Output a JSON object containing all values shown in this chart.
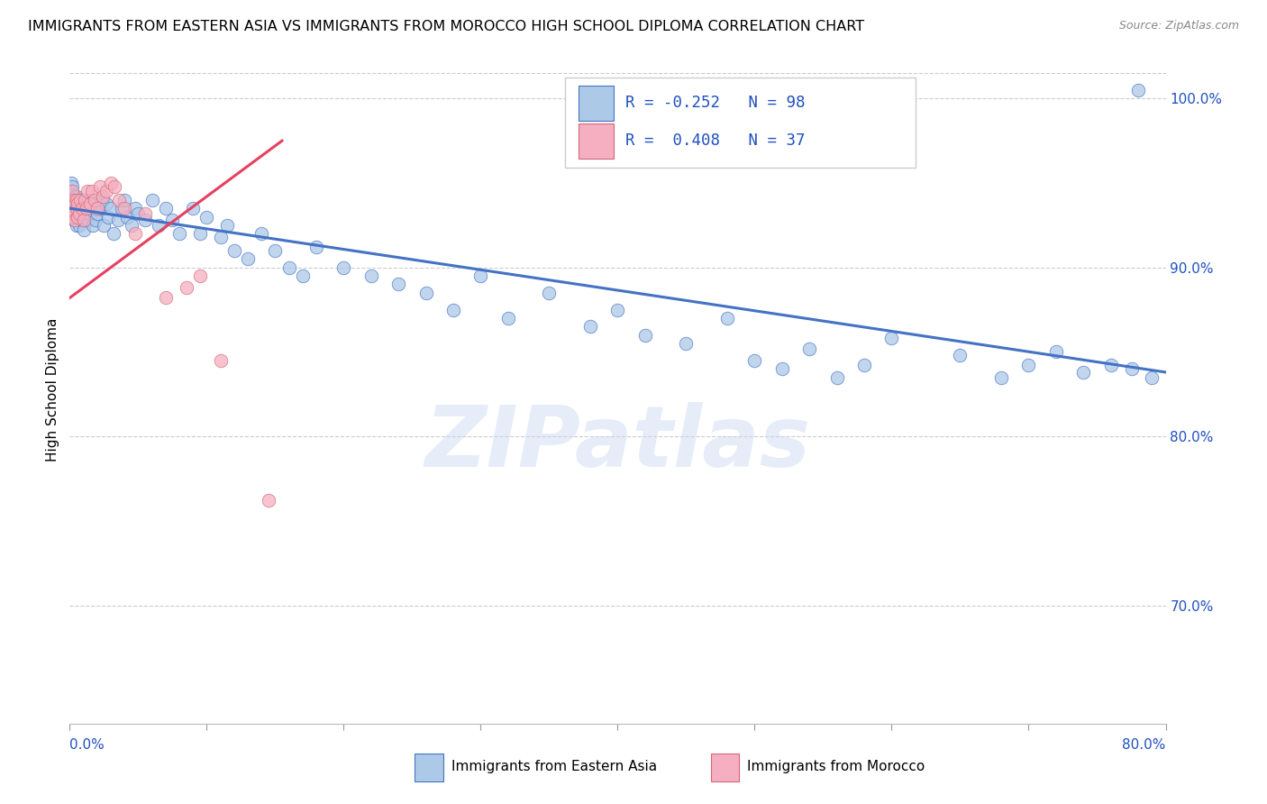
{
  "title": "IMMIGRANTS FROM EASTERN ASIA VS IMMIGRANTS FROM MOROCCO HIGH SCHOOL DIPLOMA CORRELATION CHART",
  "source": "Source: ZipAtlas.com",
  "ylabel": "High School Diploma",
  "xlim": [
    0.0,
    0.8
  ],
  "ylim": [
    0.63,
    1.025
  ],
  "r_eastern_asia": -0.252,
  "n_eastern_asia": 98,
  "r_morocco": 0.408,
  "n_morocco": 37,
  "color_eastern_asia": "#adc9e8",
  "color_morocco": "#f5afc0",
  "trendline_eastern_asia": "#4472c4",
  "trendline_morocco": "#e84060",
  "legend_text_color": "#2050c0",
  "watermark": "ZIPatlas",
  "ea_trendline_x0": 0.0,
  "ea_trendline_y0": 0.935,
  "ea_trendline_x1": 0.8,
  "ea_trendline_y1": 0.838,
  "mo_trendline_x0": 0.0,
  "mo_trendline_y0": 0.882,
  "mo_trendline_x1": 0.155,
  "mo_trendline_y1": 0.975,
  "eastern_asia_x": [
    0.001,
    0.001,
    0.002,
    0.002,
    0.002,
    0.003,
    0.003,
    0.003,
    0.003,
    0.004,
    0.004,
    0.004,
    0.004,
    0.005,
    0.005,
    0.005,
    0.006,
    0.006,
    0.006,
    0.007,
    0.007,
    0.007,
    0.008,
    0.008,
    0.009,
    0.009,
    0.01,
    0.01,
    0.011,
    0.012,
    0.013,
    0.014,
    0.015,
    0.016,
    0.017,
    0.018,
    0.019,
    0.02,
    0.022,
    0.024,
    0.025,
    0.027,
    0.028,
    0.03,
    0.032,
    0.035,
    0.038,
    0.04,
    0.042,
    0.045,
    0.048,
    0.05,
    0.055,
    0.06,
    0.065,
    0.07,
    0.075,
    0.08,
    0.09,
    0.095,
    0.1,
    0.11,
    0.115,
    0.12,
    0.13,
    0.14,
    0.15,
    0.16,
    0.17,
    0.18,
    0.2,
    0.22,
    0.24,
    0.26,
    0.28,
    0.3,
    0.32,
    0.35,
    0.38,
    0.4,
    0.42,
    0.45,
    0.48,
    0.5,
    0.52,
    0.54,
    0.56,
    0.58,
    0.6,
    0.65,
    0.68,
    0.7,
    0.72,
    0.74,
    0.76,
    0.775,
    0.78,
    0.79
  ],
  "eastern_asia_y": [
    0.95,
    0.945,
    0.948,
    0.943,
    0.937,
    0.94,
    0.935,
    0.928,
    0.94,
    0.942,
    0.935,
    0.938,
    0.93,
    0.925,
    0.935,
    0.942,
    0.928,
    0.935,
    0.94,
    0.932,
    0.925,
    0.938,
    0.93,
    0.935,
    0.928,
    0.94,
    0.935,
    0.922,
    0.93,
    0.935,
    0.928,
    0.94,
    0.932,
    0.938,
    0.925,
    0.935,
    0.928,
    0.932,
    0.935,
    0.94,
    0.925,
    0.938,
    0.93,
    0.935,
    0.92,
    0.928,
    0.935,
    0.94,
    0.93,
    0.925,
    0.935,
    0.932,
    0.928,
    0.94,
    0.925,
    0.935,
    0.928,
    0.92,
    0.935,
    0.92,
    0.93,
    0.918,
    0.925,
    0.91,
    0.905,
    0.92,
    0.91,
    0.9,
    0.895,
    0.912,
    0.9,
    0.895,
    0.89,
    0.885,
    0.875,
    0.895,
    0.87,
    0.885,
    0.865,
    0.875,
    0.86,
    0.855,
    0.87,
    0.845,
    0.84,
    0.852,
    0.835,
    0.842,
    0.858,
    0.848,
    0.835,
    0.842,
    0.85,
    0.838,
    0.842,
    0.84,
    1.005,
    0.835
  ],
  "morocco_x": [
    0.001,
    0.001,
    0.002,
    0.002,
    0.003,
    0.003,
    0.004,
    0.004,
    0.005,
    0.005,
    0.006,
    0.006,
    0.007,
    0.008,
    0.009,
    0.01,
    0.011,
    0.012,
    0.013,
    0.015,
    0.016,
    0.018,
    0.02,
    0.022,
    0.024,
    0.027,
    0.03,
    0.033,
    0.036,
    0.04,
    0.048,
    0.055,
    0.07,
    0.085,
    0.095,
    0.11,
    0.145
  ],
  "morocco_y": [
    0.938,
    0.93,
    0.945,
    0.935,
    0.94,
    0.932,
    0.938,
    0.928,
    0.935,
    0.94,
    0.93,
    0.938,
    0.932,
    0.94,
    0.935,
    0.928,
    0.94,
    0.935,
    0.945,
    0.938,
    0.945,
    0.94,
    0.935,
    0.948,
    0.942,
    0.945,
    0.95,
    0.948,
    0.94,
    0.935,
    0.92,
    0.932,
    0.882,
    0.888,
    0.895,
    0.845,
    0.762
  ]
}
